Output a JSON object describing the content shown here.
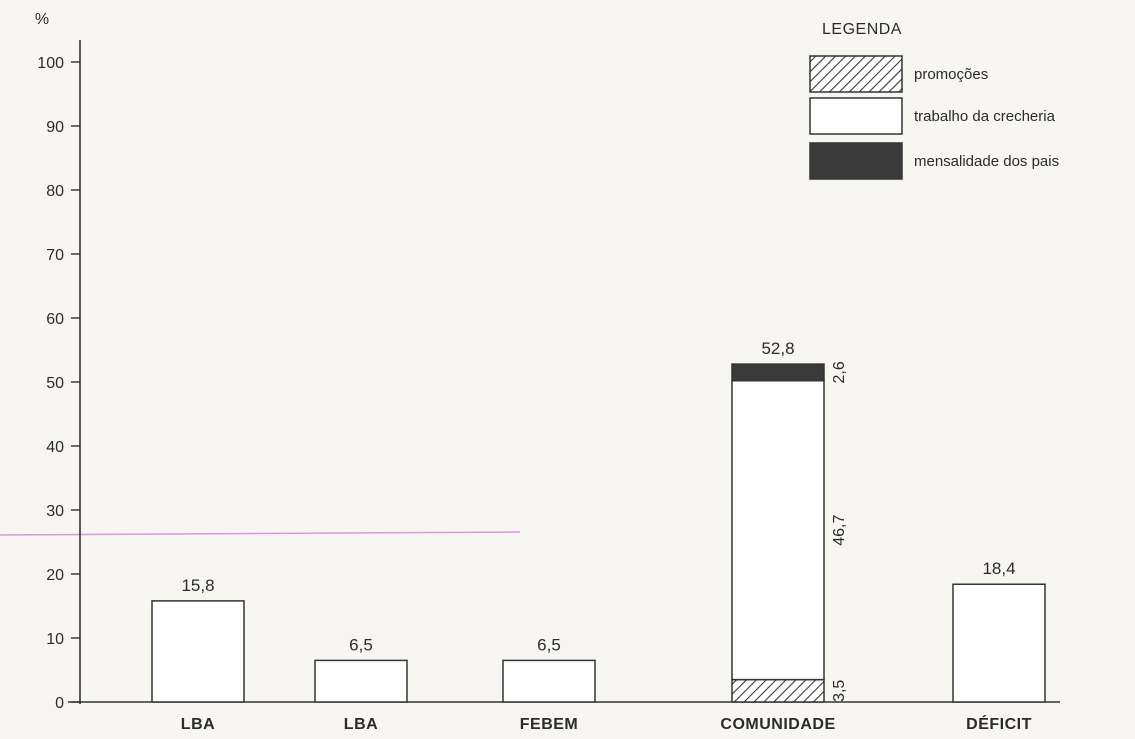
{
  "chart_data": {
    "type": "bar",
    "stacked": true,
    "ylabel": "%",
    "ylim": [
      0,
      100
    ],
    "yticks": [
      0,
      10,
      20,
      30,
      40,
      50,
      60,
      70,
      80,
      90,
      100
    ],
    "categories": [
      "LBA",
      "LBA",
      "FEBEM",
      "COMUNIDADE",
      "DÉFICIT"
    ],
    "totals": [
      "15,8",
      "6,5",
      "6,5",
      "52,8",
      "18,4"
    ],
    "legend": {
      "title": "LEGENDA",
      "placement": "top-right",
      "entries": [
        {
          "key": "promocoes",
          "label": "promoções",
          "fill": "hatch"
        },
        {
          "key": "trabalho",
          "label": "trabalho da crecheria",
          "fill": "white"
        },
        {
          "key": "mensalidade",
          "label": "mensalidade dos pais",
          "fill": "dark"
        }
      ]
    },
    "series": [
      {
        "key": "promocoes",
        "name": "promoções",
        "values": [
          0,
          0,
          0,
          3.5,
          0
        ],
        "labels": [
          "",
          "",
          "",
          "3,5",
          ""
        ]
      },
      {
        "key": "trabalho",
        "name": "trabalho da crecheria",
        "values": [
          15.8,
          6.5,
          6.5,
          46.7,
          18.4
        ],
        "labels": [
          "",
          "",
          "",
          "46,7",
          ""
        ]
      },
      {
        "key": "mensalidade",
        "name": "mensalidade dos pais",
        "values": [
          0,
          0,
          0,
          2.6,
          0
        ],
        "labels": [
          "",
          "",
          "",
          "2,6",
          ""
        ]
      }
    ],
    "colors": {
      "axis": "#333333",
      "dark": "#3a3a3a",
      "white": "#ffffff",
      "hatch": "#3a3a3a",
      "accent_line": "#d77fe0"
    }
  }
}
